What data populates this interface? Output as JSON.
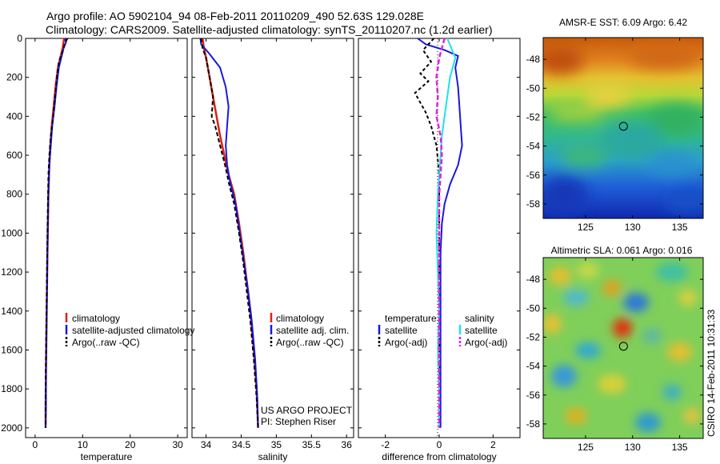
{
  "header": {
    "line1": "Argo profile: AO 5902104_94 08-Feb-2011 20110209_490 52.63S 129.028E",
    "line2": "Climatology: CARS2009. Satellite-adjusted climatology: synTS_20110207.nc (1.2d earlier)"
  },
  "credits": {
    "project": "US ARGO PROJECT",
    "pi": "PI: Stephen Riser",
    "stamp": "CSIRO 14-Feb-2011 10:31:33"
  },
  "colors": {
    "climatology": "#e02010",
    "satellite": "#1818e0",
    "argo": "#000000",
    "sat_salinity": "#20e0e8",
    "argo_salinity": "#e020e0"
  },
  "chart_data": [
    {
      "id": "temperature",
      "type": "line",
      "xlabel": "temperature",
      "ylabel": "depth",
      "xlim": [
        -2,
        32
      ],
      "ylim": [
        2050,
        0
      ],
      "xticks": [
        0,
        10,
        20,
        30
      ],
      "yticks": [
        0,
        200,
        400,
        600,
        800,
        1000,
        1200,
        1400,
        1600,
        1800,
        2000
      ],
      "legend": {
        "position": "middle-right",
        "entries": [
          "climatology",
          "satellite-adjusted climatology",
          "Argo(..raw -QC)"
        ]
      },
      "series": [
        {
          "name": "climatology",
          "style": "solid",
          "color": "#e02010",
          "x": [
            6.1,
            5.8,
            5.3,
            4.8,
            4.3,
            3.9,
            3.5,
            3.2,
            3.0,
            2.8,
            2.7,
            2.6,
            2.5,
            2.4,
            2.3,
            2.2,
            2.2
          ],
          "y": [
            0,
            50,
            100,
            150,
            250,
            350,
            450,
            550,
            650,
            800,
            950,
            1100,
            1300,
            1500,
            1700,
            1900,
            2000
          ]
        },
        {
          "name": "satellite-adjusted climatology",
          "style": "solid",
          "color": "#1818e0",
          "x": [
            6.3,
            6.5,
            6.0,
            5.5,
            5.0,
            4.5,
            4.1,
            3.6,
            3.3,
            3.0,
            2.8,
            2.7,
            2.6,
            2.5,
            2.4,
            2.3,
            2.3,
            2.2
          ],
          "y": [
            0,
            20,
            50,
            100,
            150,
            250,
            350,
            450,
            550,
            650,
            800,
            950,
            1100,
            1300,
            1500,
            1700,
            1900,
            2000
          ]
        },
        {
          "name": "Argo(..raw -QC)",
          "style": "dashed",
          "color": "#000000",
          "x": [
            6.8,
            6.2,
            5.9,
            5.0,
            4.6,
            4.2,
            3.8,
            3.3,
            3.0,
            2.8,
            2.7,
            2.6,
            2.5,
            2.4,
            2.3,
            2.2,
            2.2
          ],
          "y": [
            0,
            30,
            60,
            120,
            200,
            300,
            400,
            500,
            600,
            700,
            850,
            1000,
            1200,
            1400,
            1600,
            1800,
            2000
          ]
        }
      ]
    },
    {
      "id": "salinity",
      "type": "line",
      "xlabel": "salinity",
      "xlim": [
        33.8,
        36.1
      ],
      "ylim": [
        2050,
        0
      ],
      "xticks": [
        34,
        34.5,
        35,
        35.5,
        36
      ],
      "legend": {
        "position": "middle-right",
        "entries": [
          "climatology",
          "satellite adj. clim.",
          "Argo(..raw -QC)"
        ]
      },
      "series": [
        {
          "name": "climatology",
          "style": "solid",
          "color": "#e02010",
          "x": [
            33.95,
            33.97,
            34.0,
            34.05,
            34.1,
            34.15,
            34.2,
            34.26,
            34.32,
            34.4,
            34.47,
            34.53,
            34.58,
            34.63,
            34.68,
            34.72,
            34.74
          ],
          "y": [
            0,
            50,
            100,
            200,
            300,
            400,
            500,
            600,
            700,
            800,
            950,
            1100,
            1250,
            1400,
            1600,
            1800,
            2000
          ]
        },
        {
          "name": "satellite adj. clim.",
          "style": "solid",
          "color": "#1818e0",
          "x": [
            33.92,
            33.93,
            34.05,
            34.2,
            34.28,
            34.32,
            34.3,
            34.28,
            34.3,
            34.35,
            34.42,
            34.48,
            34.54,
            34.6,
            34.65,
            34.7,
            34.73,
            34.74
          ],
          "y": [
            0,
            30,
            80,
            150,
            250,
            350,
            450,
            550,
            650,
            750,
            850,
            1000,
            1150,
            1300,
            1450,
            1650,
            1850,
            2000
          ]
        },
        {
          "name": "Argo(..raw -QC)",
          "style": "dashed",
          "color": "#000000",
          "x": [
            33.93,
            33.95,
            34.0,
            34.05,
            34.1,
            34.08,
            34.13,
            34.2,
            34.27,
            34.33,
            34.4,
            34.47,
            34.53,
            34.58,
            34.63,
            34.68,
            34.72,
            34.74
          ],
          "y": [
            0,
            50,
            100,
            200,
            300,
            400,
            450,
            550,
            650,
            750,
            850,
            1000,
            1150,
            1300,
            1450,
            1650,
            1850,
            2000
          ]
        }
      ]
    },
    {
      "id": "difference",
      "type": "line",
      "xlabel": "difference from climatology",
      "xlim": [
        -3,
        3
      ],
      "ylim": [
        2050,
        0
      ],
      "xticks": [
        -2,
        0,
        2
      ],
      "legend": {
        "position": "middle",
        "entries": [
          "temperature",
          "satellite",
          "Argo(-adj)",
          "salinity",
          "satellite",
          "Argo(-adj)"
        ]
      },
      "series": [
        {
          "name": "temperature satellite",
          "style": "solid",
          "color": "#1818e0",
          "x": [
            -0.8,
            -0.5,
            0.2,
            0.7,
            0.6,
            0.7,
            0.75,
            0.8,
            0.85,
            0.7,
            0.4,
            0.2,
            0.1,
            0.05,
            0.05,
            0.05,
            0.05,
            0.05
          ],
          "y": [
            0,
            30,
            60,
            90,
            150,
            250,
            350,
            450,
            550,
            650,
            750,
            850,
            950,
            1100,
            1300,
            1500,
            1800,
            2000
          ]
        },
        {
          "name": "temperature Argo(-adj)",
          "style": "dashed",
          "color": "#000000",
          "x": [
            -0.2,
            -0.6,
            -0.3,
            -0.7,
            -0.4,
            -0.9,
            -0.7,
            -0.5,
            -0.3,
            -0.1,
            0.0,
            0.0,
            0.0,
            0.0,
            0.0,
            0.0
          ],
          "y": [
            0,
            60,
            120,
            180,
            220,
            280,
            330,
            380,
            450,
            550,
            700,
            900,
            1100,
            1400,
            1700,
            2000
          ]
        },
        {
          "name": "salinity satellite",
          "style": "solid",
          "color": "#20e0e8",
          "x": [
            0.3,
            0.6,
            0.4,
            0.3,
            0.2,
            0.1,
            0.05,
            0.0,
            -0.05,
            -0.1,
            -0.05,
            0.0,
            -0.05,
            0.0,
            0.0
          ],
          "y": [
            0,
            100,
            200,
            300,
            400,
            500,
            600,
            700,
            800,
            1000,
            1200,
            1400,
            1600,
            1800,
            2000
          ]
        },
        {
          "name": "salinity Argo(-adj)",
          "style": "dashed",
          "color": "#e020e0",
          "x": [
            0.2,
            0.0,
            -0.1,
            -0.05,
            -0.1,
            0.05,
            0.1,
            0.0,
            0.0,
            0.0,
            0.0
          ],
          "y": [
            0,
            100,
            200,
            300,
            400,
            500,
            600,
            800,
            1200,
            1600,
            2000
          ]
        }
      ]
    },
    {
      "id": "sst_map",
      "type": "heatmap",
      "title": "AMSR-E SST: 6.09 Argo: 6.42",
      "xticks": [
        125,
        130,
        135
      ],
      "yticks": [
        -48,
        -50,
        -52,
        -54,
        -56,
        -58
      ],
      "xlim": [
        120.5,
        137.5
      ],
      "ylim": [
        -59,
        -46.5
      ],
      "marker": {
        "lon": 129.028,
        "lat": -52.63
      }
    },
    {
      "id": "sla_map",
      "type": "heatmap",
      "title": "Altimetric SLA: 0.061 Argo: 0.016",
      "xticks": [
        125,
        130,
        135
      ],
      "yticks": [
        -48,
        -50,
        -52,
        -54,
        -56,
        -58
      ],
      "xlim": [
        120.5,
        137.5
      ],
      "ylim": [
        -59,
        -46.5
      ],
      "marker": {
        "lon": 129.028,
        "lat": -52.63
      }
    }
  ]
}
